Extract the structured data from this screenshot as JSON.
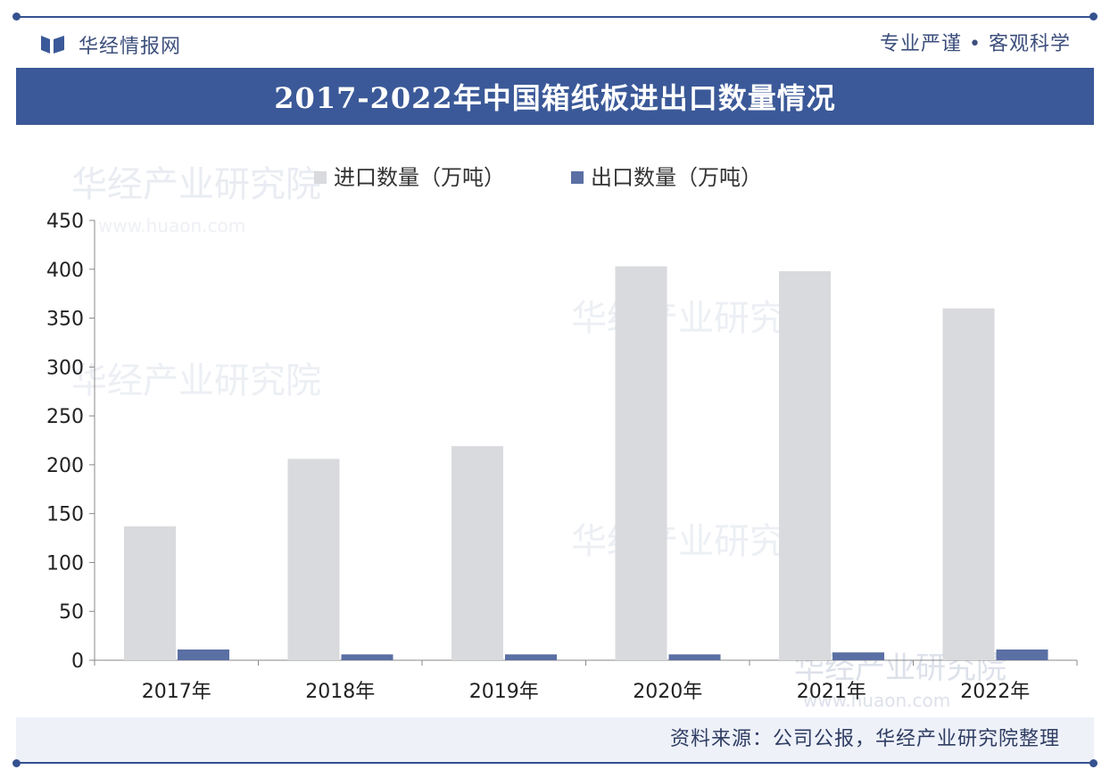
{
  "header": {
    "brand_name": "华经情报网",
    "slogan": "专业严谨 • 客观科学"
  },
  "watermark": {
    "text": "华经产业研究院",
    "url": "www.huaon.com"
  },
  "footer": {
    "source": "资料来源：公司公报，华经产业研究院整理"
  },
  "colors": {
    "accent": "#3b5998",
    "import_bar": "#d9dadd",
    "export_bar": "#5a6fa3"
  },
  "chart_data": {
    "type": "bar",
    "title": "2017-2022年中国箱纸板进出口数量情况",
    "categories": [
      "2017年",
      "2018年",
      "2019年",
      "2020年",
      "2021年",
      "2022年"
    ],
    "series": [
      {
        "name": "进口数量（万吨）",
        "color": "#d9dadd",
        "values": [
          137,
          206,
          219,
          403,
          398,
          360
        ]
      },
      {
        "name": "出口数量（万吨）",
        "color": "#5a6fa3",
        "values": [
          11,
          6,
          6,
          6,
          8,
          11
        ]
      }
    ],
    "yticks": [
      0,
      50,
      100,
      150,
      200,
      250,
      300,
      350,
      400,
      450
    ],
    "ylim": [
      0,
      450
    ],
    "grid": false,
    "legend_position": "top"
  }
}
